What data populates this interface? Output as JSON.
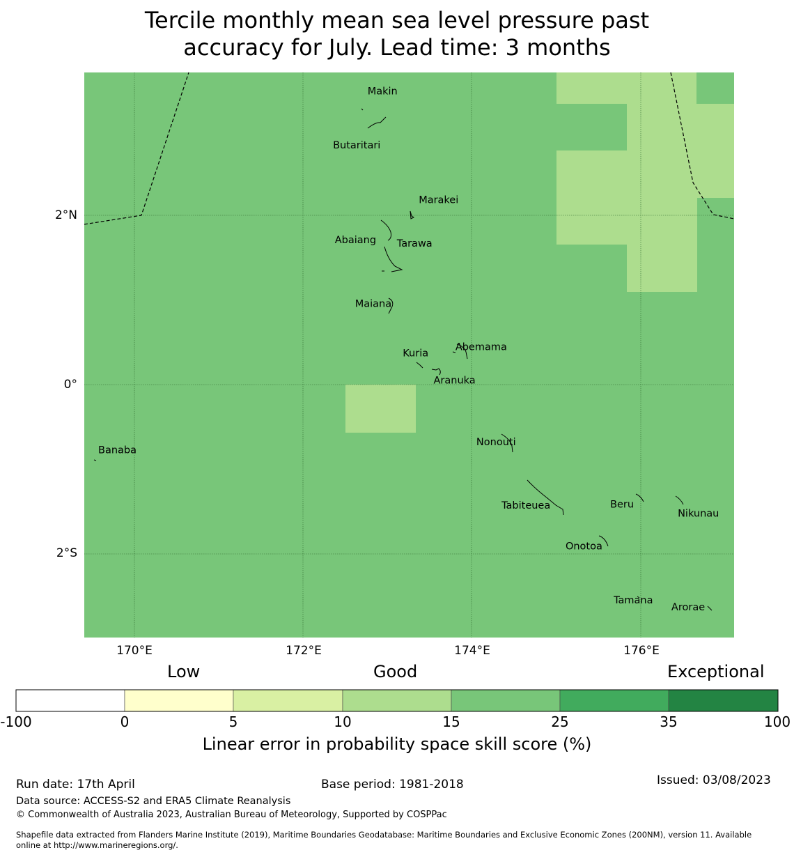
{
  "title": {
    "line1": "Tercile monthly mean sea level pressure past",
    "line2": "accuracy for July. Lead time: 3 months"
  },
  "map": {
    "background_color": "#78c679",
    "highlight_color": "#addd8e",
    "lat_labels": [
      "2°N",
      "0°",
      "2°S"
    ],
    "lon_labels": [
      "170°E",
      "172°E",
      "174°E",
      "176°E"
    ],
    "islands": [
      {
        "name": "Makin",
        "lon": 172.95,
        "lat": 3.33
      },
      {
        "name": "Butaritari",
        "lon": 172.78,
        "lat": 3.07
      },
      {
        "name": "Marakei",
        "lon": 173.35,
        "lat": 2.02
      },
      {
        "name": "Abaiang",
        "lon": 173.0,
        "lat": 1.85
      },
      {
        "name": "Tarawa",
        "lon": 173.0,
        "lat": 1.45
      },
      {
        "name": "Maiana",
        "lon": 173.0,
        "lat": 0.95
      },
      {
        "name": "Abemama",
        "lon": 173.85,
        "lat": 0.4
      },
      {
        "name": "Kuria",
        "lon": 173.4,
        "lat": 0.22
      },
      {
        "name": "Aranuka",
        "lon": 173.6,
        "lat": 0.17
      },
      {
        "name": "Nonouti",
        "lon": 174.42,
        "lat": -0.64
      },
      {
        "name": "Banaba",
        "lon": 169.53,
        "lat": -0.86
      },
      {
        "name": "Beru",
        "lon": 175.98,
        "lat": -1.33
      },
      {
        "name": "Nikunau",
        "lon": 176.45,
        "lat": -1.37
      },
      {
        "name": "Tabiteuea",
        "lon": 174.85,
        "lat": -1.35
      },
      {
        "name": "Onotoa",
        "lon": 175.55,
        "lat": -1.83
      },
      {
        "name": "Tamana",
        "lon": 175.98,
        "lat": -2.5
      },
      {
        "name": "Arorae",
        "lon": 176.82,
        "lat": -2.64
      }
    ]
  },
  "colorbar": {
    "categories": [
      "Low",
      "Good",
      "Exceptional"
    ],
    "ticks": [
      "-100",
      "0",
      "5",
      "10",
      "15",
      "25",
      "35",
      "100"
    ],
    "colors": [
      "#ffffff",
      "#ffffcc",
      "#d9f0a3",
      "#addd8e",
      "#78c679",
      "#41ab5d",
      "#238443"
    ],
    "label": "Linear error in probability space skill score (%)"
  },
  "footer": {
    "run_date": "Run date: 17th April",
    "base_period": "Base period: 1981-2018",
    "issued": "Issued: 03/08/2023",
    "data_source": "Data source: ACCESS-S2 and ERA5 Climate Reanalysis",
    "copyright": "© Commonwealth of Australia 2023, Australian Bureau of Meteorology, Supported by COSPPac",
    "shapefile_line1": "Shapefile data extracted from Flanders Marine Institute (2019), Maritime Boundaries Geodatabase: Maritime Boundaries and Exclusive Economic Zones (200NM), version 11. Available",
    "shapefile_line2": "online at http://www.marineregions.org/."
  }
}
